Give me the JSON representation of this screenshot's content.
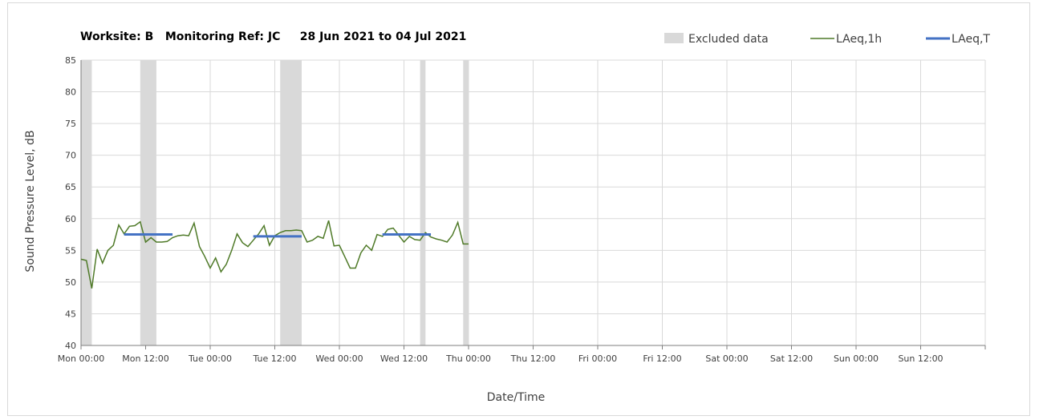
{
  "chart_data": {
    "type": "line",
    "title": "Worksite: B   Monitoring Ref: JC     28 Jun 2021 to 04 Jul 2021",
    "xlabel": "Date/Time",
    "ylabel": "Sound Pressure Level, dB",
    "ylim": [
      40,
      85
    ],
    "yticks": [
      40,
      45,
      50,
      55,
      60,
      65,
      70,
      75,
      80,
      85
    ],
    "xlim_hours": [
      0,
      168
    ],
    "x_ticks": [
      {
        "hour": 0,
        "label": "Mon 00:00"
      },
      {
        "hour": 12,
        "label": "Mon 12:00"
      },
      {
        "hour": 24,
        "label": "Tue 00:00"
      },
      {
        "hour": 36,
        "label": "Tue 12:00"
      },
      {
        "hour": 48,
        "label": "Wed 00:00"
      },
      {
        "hour": 60,
        "label": "Wed 12:00"
      },
      {
        "hour": 72,
        "label": "Thu 00:00"
      },
      {
        "hour": 84,
        "label": "Thu 12:00"
      },
      {
        "hour": 96,
        "label": "Fri 00:00"
      },
      {
        "hour": 108,
        "label": "Fri 12:00"
      },
      {
        "hour": 120,
        "label": "Sat 00:00"
      },
      {
        "hour": 132,
        "label": "Sat 12:00"
      },
      {
        "hour": 144,
        "label": "Sun 00:00"
      },
      {
        "hour": 156,
        "label": "Sun 12:00"
      }
    ],
    "grid": true,
    "legend_position": "top-right",
    "legend": [
      {
        "label": "Excluded data",
        "kind": "area",
        "color": "#d9d9d9"
      },
      {
        "label": "LAeq,1h",
        "kind": "thin-line",
        "color": "#4f7a28"
      },
      {
        "label": "LAeq,T",
        "kind": "thick-line",
        "color": "#4472c4"
      }
    ],
    "excluded_periods": [
      {
        "start": 0,
        "end": 2
      },
      {
        "start": 11,
        "end": 14
      },
      {
        "start": 37,
        "end": 41
      },
      {
        "start": 63,
        "end": 64
      },
      {
        "start": 71,
        "end": 72
      }
    ],
    "series": [
      {
        "name": "LAeq,1h",
        "color": "#4f7a28",
        "points": [
          [
            0,
            53.6
          ],
          [
            1,
            53.4
          ],
          [
            2,
            49.0
          ],
          [
            3,
            55.2
          ],
          [
            4,
            53.0
          ],
          [
            5,
            55.0
          ],
          [
            6,
            55.8
          ],
          [
            7,
            59.0
          ],
          [
            8,
            57.6
          ],
          [
            9,
            58.8
          ],
          [
            10,
            58.9
          ],
          [
            11,
            59.5
          ],
          [
            12,
            56.3
          ],
          [
            13,
            57.0
          ],
          [
            14,
            56.3
          ],
          [
            15,
            56.3
          ],
          [
            16,
            56.4
          ],
          [
            17,
            57.0
          ],
          [
            18,
            57.3
          ],
          [
            19,
            57.4
          ],
          [
            20,
            57.3
          ],
          [
            21,
            59.3
          ],
          [
            22,
            55.6
          ],
          [
            23,
            54.0
          ],
          [
            24,
            52.2
          ],
          [
            25,
            53.8
          ],
          [
            26,
            51.6
          ],
          [
            27,
            52.8
          ],
          [
            28,
            55.0
          ],
          [
            29,
            57.6
          ],
          [
            30,
            56.2
          ],
          [
            31,
            55.6
          ],
          [
            32,
            56.6
          ],
          [
            33,
            57.6
          ],
          [
            34,
            58.9
          ],
          [
            35,
            55.8
          ],
          [
            36,
            57.3
          ],
          [
            37,
            57.8
          ],
          [
            38,
            58.1
          ],
          [
            39,
            58.1
          ],
          [
            40,
            58.2
          ],
          [
            41,
            58.1
          ],
          [
            42,
            56.3
          ],
          [
            43,
            56.6
          ],
          [
            44,
            57.2
          ],
          [
            45,
            56.9
          ],
          [
            46,
            59.7
          ],
          [
            47,
            55.7
          ],
          [
            48,
            55.8
          ],
          [
            49,
            54.0
          ],
          [
            50,
            52.2
          ],
          [
            51,
            52.2
          ],
          [
            52,
            54.6
          ],
          [
            53,
            55.8
          ],
          [
            54,
            55.0
          ],
          [
            55,
            57.5
          ],
          [
            56,
            57.2
          ],
          [
            57,
            58.3
          ],
          [
            58,
            58.5
          ],
          [
            59,
            57.4
          ],
          [
            60,
            56.3
          ],
          [
            61,
            57.2
          ],
          [
            62,
            56.7
          ],
          [
            63,
            56.6
          ],
          [
            64,
            57.8
          ],
          [
            65,
            57.1
          ],
          [
            66,
            56.8
          ],
          [
            67,
            56.6
          ],
          [
            68,
            56.3
          ],
          [
            69,
            57.4
          ],
          [
            70,
            59.4
          ],
          [
            71,
            56.0
          ],
          [
            72,
            56.0
          ]
        ]
      },
      {
        "name": "LAeq,T",
        "color": "#4472c4",
        "segments": [
          {
            "start": 8,
            "end": 17,
            "value": 57.5
          },
          {
            "start": 32,
            "end": 41,
            "value": 57.2
          },
          {
            "start": 56,
            "end": 65,
            "value": 57.5
          }
        ]
      }
    ]
  }
}
